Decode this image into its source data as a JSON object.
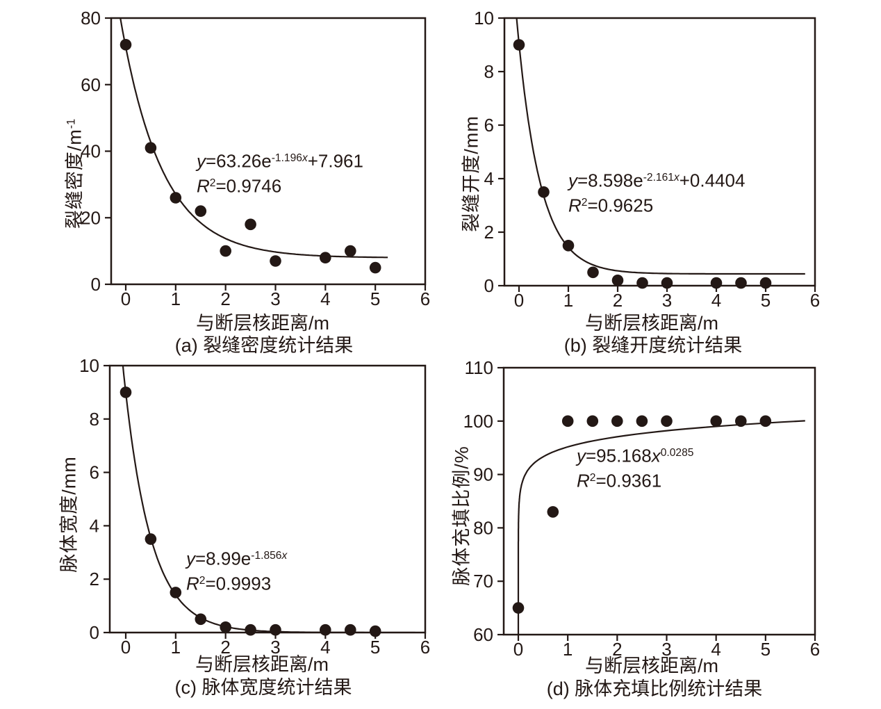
{
  "figure": {
    "background": "#ffffff",
    "ink": "#231815",
    "x_axis_label": "与断层核距离/m"
  },
  "chart_data": [
    {
      "id": "a",
      "type": "scatter",
      "caption": "(a) 裂缝密度统计结果",
      "xlabel": "与断层核距离/m",
      "ylabel": "裂缝密度/m⁻¹",
      "ylabel_parts": [
        {
          "t": "裂缝密度/m"
        },
        {
          "t": "-1",
          "s": "sup"
        }
      ],
      "xlim": [
        -0.3,
        6
      ],
      "ylim": [
        0,
        80
      ],
      "xticks": [
        0,
        1,
        2,
        3,
        4,
        5,
        6
      ],
      "yticks": [
        0,
        20,
        40,
        60,
        80
      ],
      "points": {
        "x": [
          0,
          0.5,
          1,
          1.5,
          2,
          2.5,
          3,
          4,
          4.5,
          5
        ],
        "y": [
          72,
          41,
          26,
          22,
          10,
          18,
          7,
          8,
          10,
          5
        ]
      },
      "fit": {
        "kind": "exp_offset",
        "a": 63.26,
        "b": -1.196,
        "c": 7.961,
        "r2": 0.9746,
        "label": "y=63.26e^(-1.196x)+7.961",
        "draw_range": [
          -0.2,
          5.25
        ]
      },
      "equation_parts": [
        {
          "t": "y",
          "s": "i"
        },
        {
          "t": "=63.26e"
        },
        {
          "t": "-1.196",
          "s": "sup"
        },
        {
          "t": "x",
          "s": "supi"
        },
        {
          "t": "+7.961"
        }
      ],
      "r2_parts": [
        {
          "t": "R",
          "s": "i"
        },
        {
          "t": "2",
          "s": "sup"
        },
        {
          "t": "=0.9746"
        }
      ]
    },
    {
      "id": "b",
      "type": "scatter",
      "caption": "(b) 裂缝开度统计结果",
      "xlabel": "与断层核距离/m",
      "ylabel": "裂缝开度/mm",
      "ylabel_parts": [
        {
          "t": "裂缝开度/mm"
        }
      ],
      "xlim": [
        -0.3,
        6
      ],
      "ylim": [
        0,
        10
      ],
      "xticks": [
        0,
        1,
        2,
        3,
        4,
        5,
        6
      ],
      "yticks": [
        0,
        2,
        4,
        6,
        8,
        10
      ],
      "points": {
        "x": [
          0,
          0.5,
          1,
          1.5,
          2,
          2.5,
          3,
          4,
          4.5,
          5
        ],
        "y": [
          9,
          3.5,
          1.5,
          0.5,
          0.2,
          0.1,
          0.1,
          0.1,
          0.1,
          0.1
        ]
      },
      "fit": {
        "kind": "exp_offset",
        "a": 8.598,
        "b": -2.161,
        "c": 0.4404,
        "r2": 0.9625,
        "label": "y=8.598e^(-2.161x)+0.4404",
        "draw_range": [
          -0.15,
          5.8
        ]
      },
      "equation_parts": [
        {
          "t": "y",
          "s": "i"
        },
        {
          "t": "=8.598e"
        },
        {
          "t": "-2.161",
          "s": "sup"
        },
        {
          "t": "x",
          "s": "supi"
        },
        {
          "t": "+0.4404"
        }
      ],
      "r2_parts": [
        {
          "t": "R",
          "s": "i"
        },
        {
          "t": "2",
          "s": "sup"
        },
        {
          "t": "=0.9625"
        }
      ]
    },
    {
      "id": "c",
      "type": "scatter",
      "caption": "(c) 脉体宽度统计结果",
      "xlabel": "与断层核距离/m",
      "ylabel": "脉体宽度/mm",
      "ylabel_parts": [
        {
          "t": "脉体宽度/mm"
        }
      ],
      "xlim": [
        -0.3,
        6
      ],
      "ylim": [
        0,
        10
      ],
      "xticks": [
        0,
        1,
        2,
        3,
        4,
        5,
        6
      ],
      "yticks": [
        0,
        2,
        4,
        6,
        8,
        10
      ],
      "points": {
        "x": [
          0,
          0.5,
          1,
          1.5,
          2,
          2.5,
          3,
          4,
          4.5,
          5
        ],
        "y": [
          9,
          3.5,
          1.5,
          0.5,
          0.2,
          0.1,
          0.1,
          0.1,
          0.1,
          0.05
        ]
      },
      "fit": {
        "kind": "exp_offset",
        "a": 8.99,
        "b": -1.856,
        "c": 0,
        "r2": 0.9993,
        "label": "y=8.99e^(-1.856x)",
        "draw_range": [
          -0.15,
          5.8
        ]
      },
      "equation_parts": [
        {
          "t": "y",
          "s": "i"
        },
        {
          "t": "=8.99e"
        },
        {
          "t": "-1.856",
          "s": "sup"
        },
        {
          "t": "x",
          "s": "supi"
        }
      ],
      "r2_parts": [
        {
          "t": "R",
          "s": "i"
        },
        {
          "t": "2",
          "s": "sup"
        },
        {
          "t": "=0.9993"
        }
      ]
    },
    {
      "id": "d",
      "type": "scatter",
      "caption": "(d) 脉体充填比例统计结果",
      "xlabel": "与断层核距离/m",
      "ylabel": "脉体充填比例/%",
      "ylabel_parts": [
        {
          "t": "脉体充填比例/%"
        }
      ],
      "xlim": [
        -0.3,
        6
      ],
      "ylim": [
        60,
        110
      ],
      "xticks": [
        0,
        1,
        2,
        3,
        4,
        5,
        6
      ],
      "yticks": [
        60,
        70,
        80,
        90,
        100,
        110
      ],
      "points": {
        "x": [
          0,
          0.7,
          1,
          1.5,
          2,
          2.5,
          3,
          4,
          4.5,
          5
        ],
        "y": [
          65,
          83,
          100,
          100,
          100,
          100,
          100,
          100,
          100,
          100
        ]
      },
      "fit": {
        "kind": "power",
        "a": 95.168,
        "b": 0.0285,
        "r2": 0.9361,
        "label": "y=95.168x^0.0285",
        "draw_range": [
          1e-07,
          5.8
        ]
      },
      "equation_parts": [
        {
          "t": "y",
          "s": "i"
        },
        {
          "t": "=95.168"
        },
        {
          "t": "x",
          "s": "i"
        },
        {
          "t": "0.0285",
          "s": "sup"
        }
      ],
      "r2_parts": [
        {
          "t": "R",
          "s": "i"
        },
        {
          "t": "2",
          "s": "sup"
        },
        {
          "t": "=0.9361"
        }
      ]
    }
  ]
}
